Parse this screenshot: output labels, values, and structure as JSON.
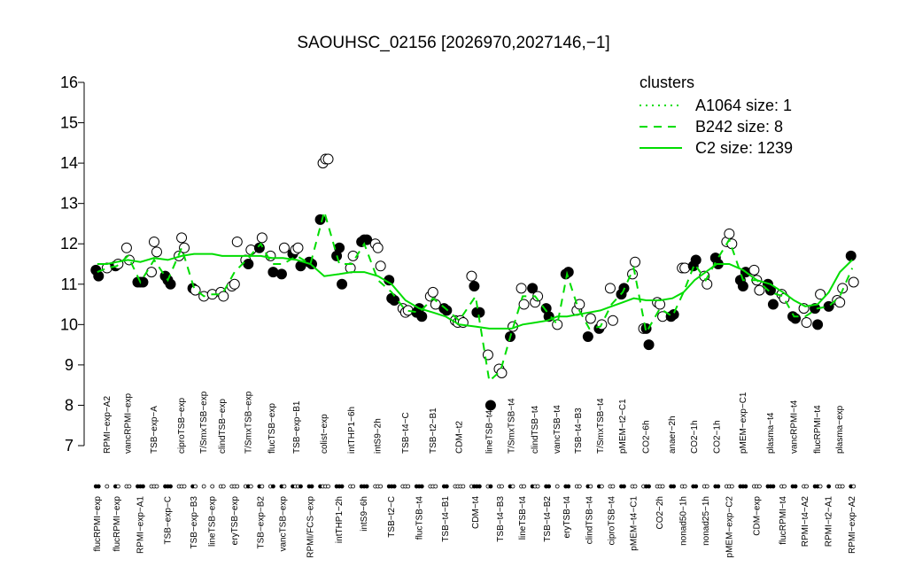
{
  "chart_data": {
    "type": "cluster-strip",
    "title": "SAOUHSC_02156 [2026970,2027146,−1]",
    "ylim": [
      7,
      16
    ],
    "yticks": [
      7,
      8,
      9,
      10,
      11,
      12,
      13,
      14,
      15,
      16
    ],
    "legend_title": "clusters",
    "legend_color": "#00dd00",
    "groups": [
      {
        "name": "flucRPMI−exp",
        "values": [
          11.35,
          11.2
        ],
        "filled": [
          true,
          true
        ]
      },
      {
        "name": "RPMI−exp−A2",
        "values": [
          11.4
        ],
        "filled": [
          false
        ]
      },
      {
        "name": "flucRPMI−exp",
        "values": [
          11.45,
          11.5
        ],
        "filled": [
          true,
          false
        ]
      },
      {
        "name": "vancRPMI−exp",
        "values": [
          11.9,
          11.6
        ],
        "filled": [
          false,
          false
        ]
      },
      {
        "name": "RPMI−exp−A1",
        "values": [
          11.05,
          11.05,
          11.05
        ],
        "filled": [
          true,
          true,
          true
        ]
      },
      {
        "name": "TSB−exp−A",
        "values": [
          11.3,
          12.05,
          11.8
        ],
        "filled": [
          false,
          false,
          false
        ]
      },
      {
        "name": "TSB−exp−C",
        "values": [
          11.2,
          11.1,
          11.0
        ],
        "filled": [
          true,
          true,
          true
        ]
      },
      {
        "name": "ciproTSB−exp",
        "values": [
          11.7,
          12.15,
          11.9
        ],
        "filled": [
          false,
          false,
          false
        ]
      },
      {
        "name": "TSB−exp−B3",
        "values": [
          10.9,
          10.85
        ],
        "filled": [
          true,
          false
        ]
      },
      {
        "name": "T/SmxTSB−exp",
        "values": [
          10.7
        ],
        "filled": [
          false
        ]
      },
      {
        "name": "lineTSB−exp",
        "values": [
          10.75
        ],
        "filled": [
          false
        ]
      },
      {
        "name": "clindTSB−exp",
        "values": [
          10.8,
          10.7
        ],
        "filled": [
          false,
          false
        ]
      },
      {
        "name": "eryTSB−exp",
        "values": [
          10.95,
          11.0,
          12.05
        ],
        "filled": [
          false,
          false,
          false
        ]
      },
      {
        "name": "T/SmxTSB−exp",
        "values": [
          11.6,
          11.5,
          11.85
        ],
        "filled": [
          false,
          true,
          false
        ]
      },
      {
        "name": "TSB−exp−B2",
        "values": [
          11.9,
          12.15
        ],
        "filled": [
          true,
          false
        ]
      },
      {
        "name": "flucTSB−exp",
        "values": [
          11.7,
          11.3
        ],
        "filled": [
          false,
          true
        ]
      },
      {
        "name": "vancTSB−exp",
        "values": [
          11.25,
          11.9
        ],
        "filled": [
          true,
          false
        ]
      },
      {
        "name": "TSB−exp−B1",
        "values": [
          11.75,
          11.85,
          11.9,
          11.45
        ],
        "filled": [
          true,
          false,
          false,
          true
        ]
      },
      {
        "name": "RPMI/FCS−exp",
        "values": [
          11.55,
          11.5
        ],
        "filled": [
          true,
          true
        ]
      },
      {
        "name": "colist−exp",
        "values": [
          12.6,
          14.0,
          14.1,
          14.1
        ],
        "filled": [
          true,
          false,
          false,
          false
        ]
      },
      {
        "name": "intTHP1−2h",
        "values": [
          11.7,
          11.9,
          11.0
        ],
        "filled": [
          true,
          true,
          true
        ]
      },
      {
        "name": "intTHP1−6h",
        "values": [
          11.4,
          11.7
        ],
        "filled": [
          false,
          false
        ]
      },
      {
        "name": "intS9−6h",
        "values": [
          12.05,
          12.1,
          12.1
        ],
        "filled": [
          true,
          true,
          true
        ]
      },
      {
        "name": "intS9−2h",
        "values": [
          12.0,
          11.9,
          11.45
        ],
        "filled": [
          false,
          false,
          false
        ]
      },
      {
        "name": "TSB−t2−C",
        "values": [
          11.1,
          10.65,
          10.6
        ],
        "filled": [
          true,
          true,
          true
        ]
      },
      {
        "name": "TSB−t4−C",
        "values": [
          10.4,
          10.3,
          10.35
        ],
        "filled": [
          false,
          false,
          false
        ]
      },
      {
        "name": "flucTSB−t4",
        "values": [
          10.3,
          10.4,
          10.2
        ],
        "filled": [
          true,
          true,
          true
        ]
      },
      {
        "name": "TSB−t2−B1",
        "values": [
          10.7,
          10.8,
          10.5
        ],
        "filled": [
          false,
          false,
          false
        ]
      },
      {
        "name": "TSB−t4−B1",
        "values": [
          10.4,
          10.35
        ],
        "filled": [
          true,
          true
        ]
      },
      {
        "name": "CDM−t2",
        "values": [
          10.1,
          10.05,
          10.1,
          10.05
        ],
        "filled": [
          false,
          false,
          false,
          false
        ]
      },
      {
        "name": "CDM−t4",
        "values": [
          11.2,
          10.95,
          10.3,
          10.3
        ],
        "filled": [
          false,
          true,
          true,
          true
        ]
      },
      {
        "name": "lineTSB−t4",
        "values": [
          9.25,
          8.0
        ],
        "filled": [
          false,
          true
        ]
      },
      {
        "name": "TSB−t4−B3",
        "values": [
          8.9,
          8.8
        ],
        "filled": [
          false,
          false
        ]
      },
      {
        "name": "T/SmxTSB−t4",
        "values": [
          9.7,
          9.95
        ],
        "filled": [
          true,
          false
        ]
      },
      {
        "name": "lineTSB−t4",
        "values": [
          10.9,
          10.5
        ],
        "filled": [
          false,
          false
        ]
      },
      {
        "name": "clindTSB−t4",
        "values": [
          10.9,
          10.55,
          10.7
        ],
        "filled": [
          true,
          false,
          false
        ]
      },
      {
        "name": "TSB−t4−B2",
        "values": [
          10.4,
          10.2
        ],
        "filled": [
          true,
          true
        ]
      },
      {
        "name": "vancTSB−t4",
        "values": [
          10.0
        ],
        "filled": [
          false
        ]
      },
      {
        "name": "eryTSB−t4",
        "values": [
          11.25,
          11.3
        ],
        "filled": [
          true,
          true
        ]
      },
      {
        "name": "TSB−t4−B3",
        "values": [
          10.35,
          10.5
        ],
        "filled": [
          false,
          false
        ]
      },
      {
        "name": "clindTSB−t4",
        "values": [
          9.7,
          10.15
        ],
        "filled": [
          true,
          false
        ]
      },
      {
        "name": "T/SmxTSB−t4",
        "values": [
          9.9,
          10.0
        ],
        "filled": [
          true,
          false
        ]
      },
      {
        "name": "ciproTSB−t4",
        "values": [
          10.9,
          10.1
        ],
        "filled": [
          false,
          false
        ]
      },
      {
        "name": "pMEM−t2−C1",
        "values": [
          10.75,
          10.9
        ],
        "filled": [
          true,
          true
        ]
      },
      {
        "name": "pMEM−t4−C1",
        "values": [
          11.25,
          11.55
        ],
        "filled": [
          false,
          false
        ]
      },
      {
        "name": "CO2−6h",
        "values": [
          9.9,
          9.9,
          9.5
        ],
        "filled": [
          false,
          true,
          true
        ]
      },
      {
        "name": "CO2−2h",
        "values": [
          10.55,
          10.5,
          10.2
        ],
        "filled": [
          false,
          false,
          false
        ]
      },
      {
        "name": "anaer−2h",
        "values": [
          10.2,
          10.25
        ],
        "filled": [
          true,
          true
        ]
      },
      {
        "name": "nonad50−1h",
        "values": [
          11.4,
          11.4
        ],
        "filled": [
          false,
          false
        ]
      },
      {
        "name": "CO2−1h",
        "values": [
          11.45,
          11.6
        ],
        "filled": [
          true,
          true
        ]
      },
      {
        "name": "nonad25−1h",
        "values": [
          11.2,
          11.0
        ],
        "filled": [
          false,
          false
        ]
      },
      {
        "name": "CO2−1h",
        "values": [
          11.65,
          11.5
        ],
        "filled": [
          true,
          true
        ]
      },
      {
        "name": "pMEM−exp−C2",
        "values": [
          12.05,
          12.25,
          12.0
        ],
        "filled": [
          false,
          false,
          false
        ]
      },
      {
        "name": "pMEM−exp−C1",
        "values": [
          11.1,
          10.95,
          11.3
        ],
        "filled": [
          true,
          true,
          true
        ]
      },
      {
        "name": "CDM−exp",
        "values": [
          11.35,
          11.1,
          10.85
        ],
        "filled": [
          false,
          false,
          false
        ]
      },
      {
        "name": "plasma−t4",
        "values": [
          11.0,
          10.85,
          10.5
        ],
        "filled": [
          true,
          true,
          true
        ]
      },
      {
        "name": "flucRPMI−t4",
        "values": [
          10.75,
          10.65
        ],
        "filled": [
          false,
          false
        ]
      },
      {
        "name": "vancRPMI−t4",
        "values": [
          10.2,
          10.15
        ],
        "filled": [
          true,
          true
        ]
      },
      {
        "name": "RPMI−t4−A2",
        "values": [
          10.4,
          10.05
        ],
        "filled": [
          false,
          false
        ]
      },
      {
        "name": "flucRPMI−t4",
        "values": [
          10.4,
          10.0,
          10.75
        ],
        "filled": [
          true,
          true,
          false
        ]
      },
      {
        "name": "RPMI−t2−A1",
        "values": [
          10.45
        ],
        "filled": [
          true
        ]
      },
      {
        "name": "plasma−exp",
        "values": [
          10.6,
          10.55,
          10.9
        ],
        "filled": [
          false,
          false,
          false
        ]
      },
      {
        "name": "RPMI−exp−A2",
        "values": [
          11.7,
          11.05
        ],
        "filled": [
          true,
          false
        ]
      }
    ],
    "series": [
      {
        "name": "A1064 size: 1",
        "color": "#00dd00",
        "dash": "2,5",
        "values": [
          null,
          null,
          null,
          null,
          null,
          null,
          null,
          null,
          null,
          null,
          null,
          null,
          null,
          null,
          null,
          null,
          null,
          null,
          null,
          null,
          null,
          null,
          null,
          null,
          null,
          null,
          null,
          null,
          null,
          null,
          null,
          null,
          null,
          null,
          null,
          null,
          null,
          null,
          null,
          null,
          null,
          null,
          null,
          null,
          null,
          null,
          null,
          null,
          null,
          null,
          null,
          null,
          null,
          null,
          null,
          null,
          null,
          null,
          null,
          null,
          null,
          null,
          null
        ]
      },
      {
        "name": "B242 size: 8",
        "color": "#00dd00",
        "dash": "9,7",
        "values": [
          11.3,
          11.4,
          11.45,
          11.7,
          11.05,
          11.6,
          11.1,
          11.9,
          10.9,
          10.7,
          10.75,
          10.75,
          11.3,
          11.65,
          12.0,
          11.5,
          11.5,
          11.7,
          11.5,
          12.8,
          11.5,
          11.5,
          12.0,
          11.1,
          10.8,
          10.35,
          10.3,
          10.65,
          10.4,
          10.1,
          10.7,
          8.6,
          8.85,
          9.8,
          10.7,
          10.7,
          10.3,
          10.0,
          11.25,
          10.4,
          9.9,
          9.95,
          10.5,
          10.8,
          11.4,
          9.8,
          10.4,
          10.2,
          10.8,
          11.5,
          11.1,
          11.6,
          12.1,
          11.1,
          11.1,
          10.8,
          10.7,
          10.2,
          10.2,
          10.4,
          10.45,
          10.7,
          11.4
        ]
      },
      {
        "name": "C2 size: 1239",
        "color": "#00dd00",
        "dash": "",
        "values": [
          11.5,
          11.5,
          11.55,
          11.6,
          11.55,
          11.65,
          11.6,
          11.7,
          11.75,
          11.75,
          11.75,
          11.7,
          11.7,
          11.7,
          11.7,
          11.65,
          11.65,
          11.6,
          11.5,
          11.2,
          11.25,
          11.3,
          11.3,
          11.2,
          11.0,
          10.6,
          10.4,
          10.3,
          10.2,
          10.0,
          9.95,
          9.9,
          9.9,
          9.9,
          10.0,
          10.05,
          10.1,
          10.2,
          10.2,
          10.25,
          10.3,
          10.35,
          10.45,
          10.55,
          10.65,
          10.6,
          10.6,
          10.65,
          10.8,
          11.1,
          11.3,
          11.5,
          11.5,
          11.35,
          11.1,
          11.0,
          10.8,
          10.6,
          10.45,
          10.5,
          10.8,
          11.3,
          11.6
        ]
      }
    ]
  }
}
